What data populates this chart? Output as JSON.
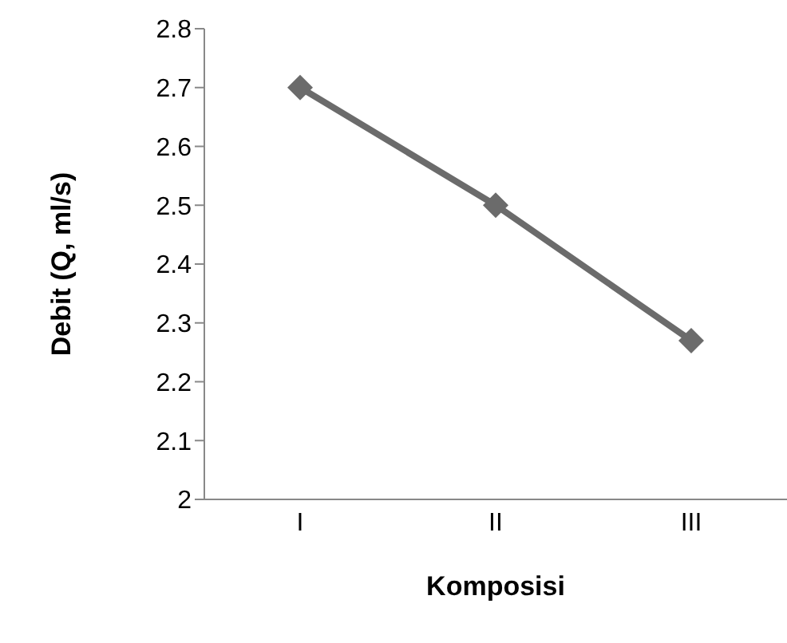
{
  "chart_data": {
    "type": "line",
    "xlabel": "Komposisi",
    "ylabel": "Debit (Q, ml/s)",
    "categories": [
      "I",
      "II",
      "III"
    ],
    "series": [
      {
        "color": "#6b6b6b",
        "values": [
          2.7,
          2.5,
          2.27
        ]
      }
    ],
    "ylim": [
      2,
      2.8
    ],
    "yticks": [
      2,
      2.1,
      2.2,
      2.3,
      2.4,
      2.5,
      2.6,
      2.7,
      2.8
    ],
    "grid": false,
    "legend": false,
    "marker": "diamond",
    "line_style": "solid"
  }
}
